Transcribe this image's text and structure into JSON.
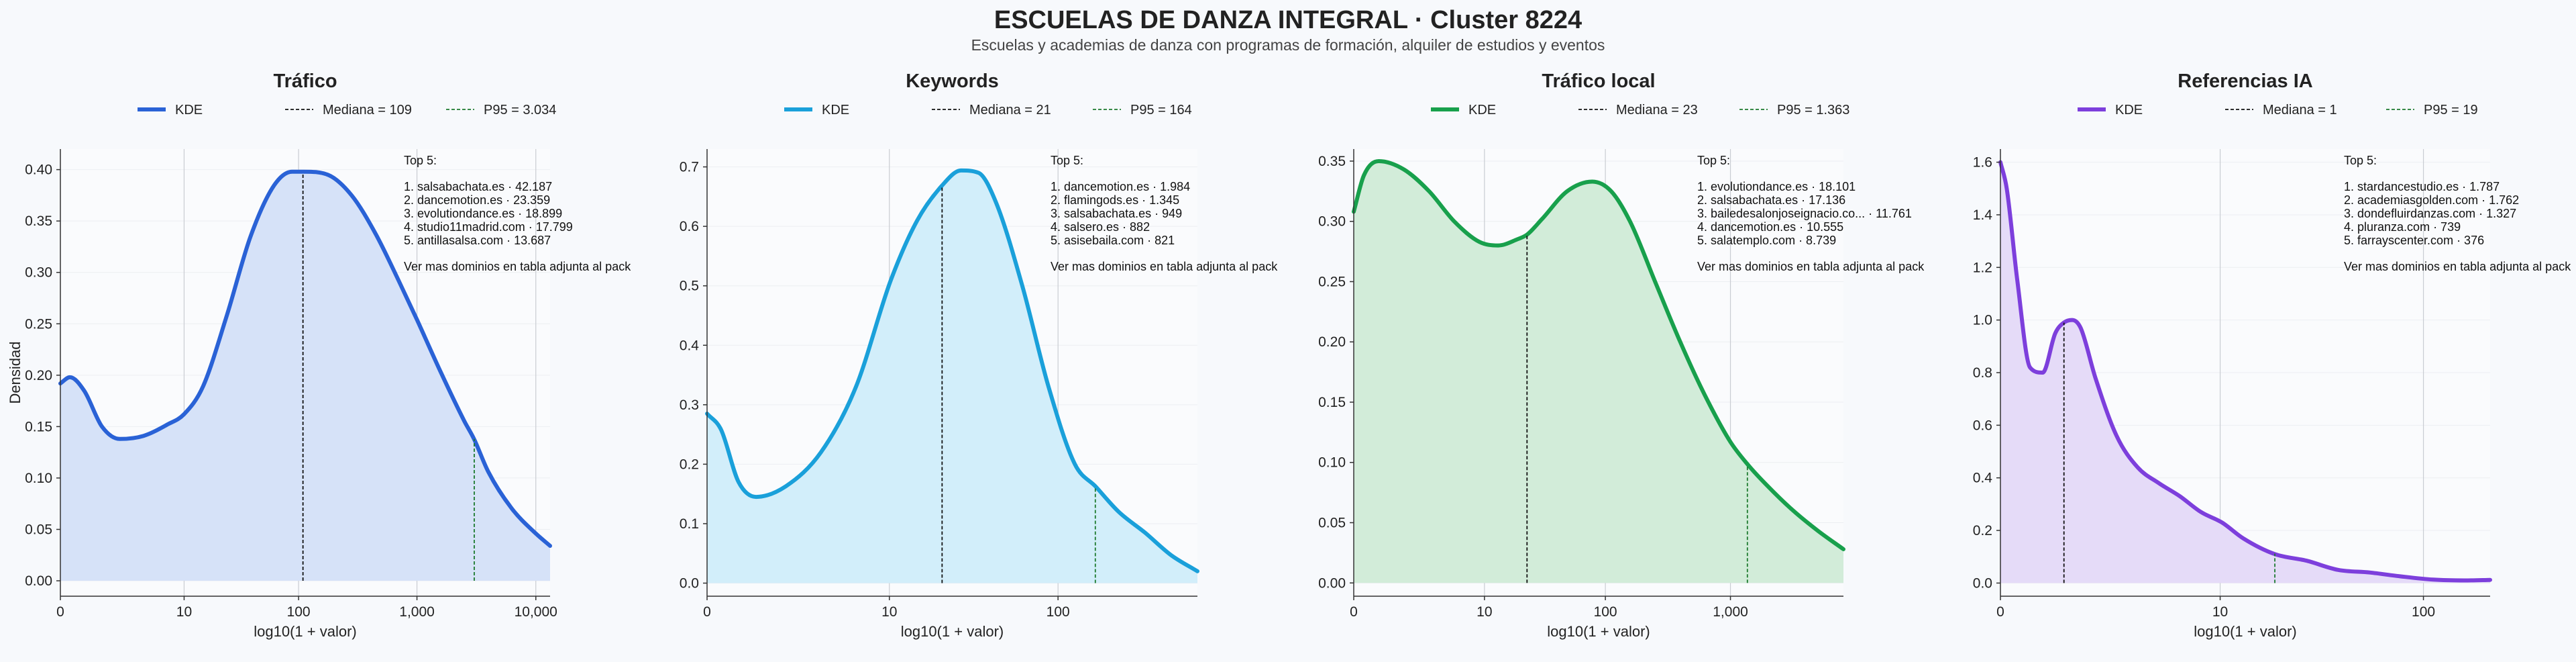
{
  "title": "ESCUELAS DE DANZA INTEGRAL · Cluster 8224",
  "subtitle": "Escuelas y academias de danza con programas de formación, alquiler de estudios y eventos",
  "chart_data": [
    {
      "type": "area",
      "title": "Tráfico",
      "color": "#2a62d6",
      "fill": "#d6e2f8",
      "xlabel": "log10(1 + valor)",
      "ylabel": "Densidad",
      "xlim": [
        0,
        4.12
      ],
      "ylim": [
        -0.015,
        0.42
      ],
      "xticks": [
        {
          "v": 0,
          "label": "0"
        },
        {
          "v": 1.041,
          "label": "10"
        },
        {
          "v": 2.004,
          "label": "100"
        },
        {
          "v": 3.0,
          "label": "1,000"
        },
        {
          "v": 4.0,
          "label": "10,000"
        }
      ],
      "yticks": [
        {
          "v": 0,
          "label": "0.00"
        },
        {
          "v": 0.05,
          "label": "0.05"
        },
        {
          "v": 0.1,
          "label": "0.10"
        },
        {
          "v": 0.15,
          "label": "0.15"
        },
        {
          "v": 0.2,
          "label": "0.20"
        },
        {
          "v": 0.25,
          "label": "0.25"
        },
        {
          "v": 0.3,
          "label": "0.30"
        },
        {
          "v": 0.35,
          "label": "0.35"
        },
        {
          "v": 0.4,
          "label": "0.40"
        }
      ],
      "median": {
        "x": 2.041,
        "y": 0.397,
        "label": "Mediana = 109"
      },
      "p95": {
        "x": 3.482,
        "y": 0.138,
        "label": "P95 = 3.034"
      },
      "legend": {
        "kde": "KDE"
      },
      "x": [
        0,
        0.08,
        0.2,
        0.35,
        0.5,
        0.7,
        0.9,
        1.04,
        1.2,
        1.4,
        1.6,
        1.8,
        1.95,
        2.05,
        2.25,
        2.45,
        2.65,
        2.85,
        3.0,
        3.2,
        3.4,
        3.48,
        3.6,
        3.8,
        4.0,
        4.12
      ],
      "y": [
        0.192,
        0.198,
        0.185,
        0.15,
        0.138,
        0.141,
        0.152,
        0.162,
        0.189,
        0.258,
        0.335,
        0.385,
        0.398,
        0.398,
        0.395,
        0.375,
        0.338,
        0.291,
        0.254,
        0.203,
        0.155,
        0.138,
        0.106,
        0.07,
        0.046,
        0.034
      ],
      "top": {
        "header": "Top 5:",
        "items": [
          "1. salsabachata.es · 42.187",
          "2. dancemotion.es · 23.359",
          "3. evolutiondance.es · 18.899",
          "4. studio11madrid.com · 17.799",
          "5. antillasalsa.com · 13.687"
        ],
        "footer": "Ver mas dominios en tabla adjunta al pack"
      }
    },
    {
      "type": "area",
      "title": "Keywords",
      "color": "#1aa0da",
      "fill": "#d2eefa",
      "xlabel": "log10(1 + valor)",
      "ylabel": "",
      "xlim": [
        0,
        2.8
      ],
      "ylim": [
        -0.022,
        0.73
      ],
      "xticks": [
        {
          "v": 0,
          "label": "0"
        },
        {
          "v": 1.041,
          "label": "10"
        },
        {
          "v": 2.004,
          "label": "100"
        }
      ],
      "yticks": [
        {
          "v": 0,
          "label": "0.0"
        },
        {
          "v": 0.1,
          "label": "0.1"
        },
        {
          "v": 0.2,
          "label": "0.2"
        },
        {
          "v": 0.3,
          "label": "0.3"
        },
        {
          "v": 0.4,
          "label": "0.4"
        },
        {
          "v": 0.5,
          "label": "0.5"
        },
        {
          "v": 0.6,
          "label": "0.6"
        },
        {
          "v": 0.7,
          "label": "0.7"
        }
      ],
      "median": {
        "x": 1.342,
        "y": 0.668,
        "label": "Mediana = 21"
      },
      "p95": {
        "x": 2.217,
        "y": 0.162,
        "label": "P95 = 164"
      },
      "legend": {
        "kde": "KDE"
      },
      "x": [
        0,
        0.08,
        0.18,
        0.28,
        0.45,
        0.65,
        0.85,
        1.05,
        1.2,
        1.34,
        1.45,
        1.55,
        1.65,
        1.8,
        1.95,
        2.1,
        2.22,
        2.35,
        2.5,
        2.65,
        2.8
      ],
      "y": [
        0.285,
        0.258,
        0.17,
        0.145,
        0.163,
        0.22,
        0.33,
        0.51,
        0.61,
        0.668,
        0.694,
        0.69,
        0.64,
        0.5,
        0.33,
        0.2,
        0.162,
        0.12,
        0.085,
        0.047,
        0.02
      ]
    },
    {
      "type": "area",
      "title": "Tráfico local",
      "color": "#18a04c",
      "fill": "#d2ecd9",
      "xlabel": "log10(1 + valor)",
      "ylabel": "",
      "xlim": [
        0,
        3.9
      ],
      "ylim": [
        -0.011,
        0.36
      ],
      "xticks": [
        {
          "v": 0,
          "label": "0"
        },
        {
          "v": 1.041,
          "label": "10"
        },
        {
          "v": 2.004,
          "label": "100"
        },
        {
          "v": 3.0,
          "label": "1,000"
        }
      ],
      "yticks": [
        {
          "v": 0,
          "label": "0.00"
        },
        {
          "v": 0.05,
          "label": "0.05"
        },
        {
          "v": 0.1,
          "label": "0.10"
        },
        {
          "v": 0.15,
          "label": "0.15"
        },
        {
          "v": 0.2,
          "label": "0.20"
        },
        {
          "v": 0.25,
          "label": "0.25"
        },
        {
          "v": 0.3,
          "label": "0.30"
        },
        {
          "v": 0.35,
          "label": "0.35"
        }
      ],
      "median": {
        "x": 1.38,
        "y": 0.289,
        "label": "Mediana = 23"
      },
      "p95": {
        "x": 3.135,
        "y": 0.098,
        "label": "P95 = 1.363"
      },
      "legend": {
        "kde": "KDE"
      },
      "x": [
        0,
        0.08,
        0.2,
        0.4,
        0.6,
        0.8,
        1.0,
        1.15,
        1.3,
        1.38,
        1.5,
        1.7,
        1.9,
        2.05,
        2.2,
        2.4,
        2.6,
        2.8,
        3.0,
        3.14,
        3.3,
        3.5,
        3.7,
        3.9
      ],
      "y": [
        0.308,
        0.338,
        0.35,
        0.343,
        0.325,
        0.3,
        0.283,
        0.28,
        0.285,
        0.289,
        0.302,
        0.325,
        0.333,
        0.325,
        0.3,
        0.25,
        0.2,
        0.155,
        0.117,
        0.098,
        0.08,
        0.06,
        0.043,
        0.028
      ],
      "top": {
        "header": "Top 5:",
        "items": [
          "1. evolutiondance.es · 18.101",
          "2. salsabachata.es · 17.136",
          "3. bailedesalonjoseignacio.co... · 11.761",
          "4. dancemotion.es · 10.555",
          "5. salatemplo.com · 8.739"
        ],
        "footer": "Ver mas dominios en tabla adjunta al pack"
      }
    },
    {
      "type": "area",
      "title": "Referencias IA",
      "color": "#7d3fdc",
      "fill": "#e5dbf8",
      "xlabel": "log10(1 + valor)",
      "ylabel": "",
      "xlim": [
        0,
        2.32
      ],
      "ylim": [
        -0.05,
        1.65
      ],
      "xticks": [
        {
          "v": 0,
          "label": "0"
        },
        {
          "v": 1.041,
          "label": "10"
        },
        {
          "v": 2.004,
          "label": "100"
        }
      ],
      "yticks": [
        {
          "v": 0,
          "label": "0.0"
        },
        {
          "v": 0.2,
          "label": "0.2"
        },
        {
          "v": 0.4,
          "label": "0.4"
        },
        {
          "v": 0.6,
          "label": "0.6"
        },
        {
          "v": 0.8,
          "label": "0.8"
        },
        {
          "v": 1.0,
          "label": "1.0"
        },
        {
          "v": 1.2,
          "label": "1.2"
        },
        {
          "v": 1.4,
          "label": "1.4"
        },
        {
          "v": 1.6,
          "label": "1.6"
        }
      ],
      "median": {
        "x": 0.301,
        "y": 0.99,
        "label": "Mediana = 1"
      },
      "p95": {
        "x": 1.3,
        "y": 0.112,
        "label": "P95 = 19"
      },
      "legend": {
        "kde": "KDE"
      },
      "x": [
        0,
        0.03,
        0.08,
        0.14,
        0.2,
        0.26,
        0.3,
        0.34,
        0.38,
        0.45,
        0.55,
        0.65,
        0.75,
        0.85,
        0.95,
        1.05,
        1.15,
        1.3,
        1.45,
        1.6,
        1.75,
        1.9,
        2.05,
        2.2,
        2.32
      ],
      "y": [
        1.6,
        1.5,
        1.15,
        0.82,
        0.8,
        0.95,
        0.99,
        1.0,
        0.97,
        0.78,
        0.56,
        0.44,
        0.38,
        0.33,
        0.27,
        0.23,
        0.17,
        0.11,
        0.085,
        0.05,
        0.04,
        0.025,
        0.013,
        0.01,
        0.012
      ],
      "top": {
        "header": "Top 5:",
        "items": [
          "1. stardancestudio.es · 1.787",
          "2. academiasgolden.com · 1.762",
          "3. dondefluirdanzas.com · 1.327",
          "4. pluranza.com · 739",
          "5. farrayscenter.com · 376"
        ],
        "footer": "Ver mas dominios en tabla adjunta al pack"
      }
    }
  ],
  "keywords_top": {
    "header": "Top 5:",
    "items": [
      "1. dancemotion.es · 1.984",
      "2. flamingods.es · 1.345",
      "3. salsabachata.es · 949",
      "4. salsero.es · 882",
      "5. asisebaila.com · 821"
    ],
    "footer": "Ver mas dominios en tabla adjunta al pack"
  }
}
